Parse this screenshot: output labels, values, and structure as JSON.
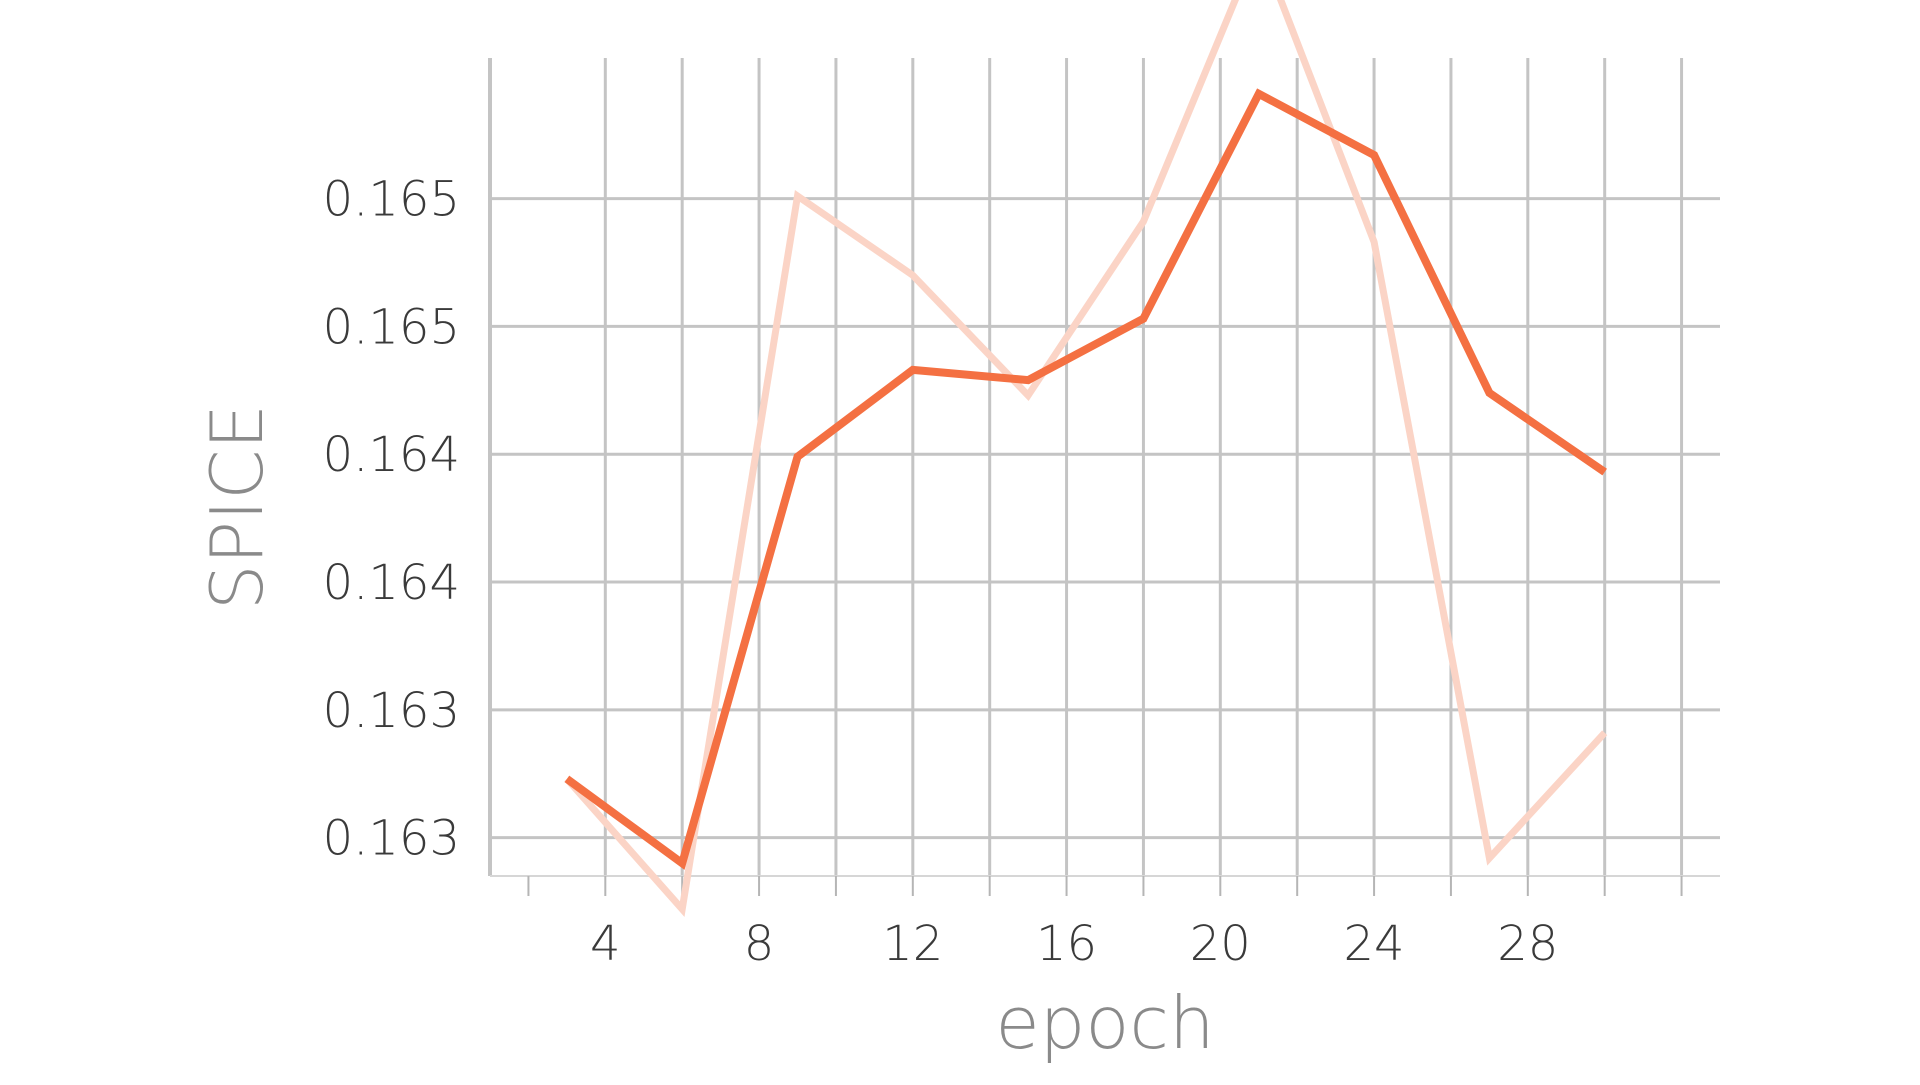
{
  "chart_data": {
    "type": "line",
    "xlabel": "epoch",
    "ylabel": "SPICE",
    "xlim": [
      1,
      33
    ],
    "ylim": [
      0.16255,
      0.16575
    ],
    "grid": true,
    "legend": "none",
    "x_ticks": [
      4,
      8,
      12,
      16,
      20,
      24,
      28
    ],
    "x_minor_ticks": [
      6,
      10,
      14,
      18,
      22,
      26,
      30,
      32
    ],
    "y_ticks": [
      0.1627,
      0.1632,
      0.1637,
      0.1642,
      0.1647,
      0.1652
    ],
    "y_tick_labels": [
      "0.163",
      "0.163",
      "0.164",
      "0.164",
      "0.165",
      "0.165"
    ],
    "series": [
      {
        "role": "smoothed",
        "color": "#f47042",
        "x": [
          3,
          6,
          9,
          12,
          15,
          18,
          21,
          24,
          27,
          30
        ],
        "y": [
          0.16293,
          0.1626,
          0.16419,
          0.16453,
          0.16449,
          0.16473,
          0.16561,
          0.16537,
          0.16444,
          0.16413
        ]
      },
      {
        "role": "raw",
        "color": "#fbd4c6",
        "x": [
          3,
          6,
          9,
          12,
          15,
          18,
          21,
          24,
          27,
          30
        ],
        "y": [
          0.16293,
          0.16242,
          0.16521,
          0.1649,
          0.16443,
          0.16511,
          0.1662,
          0.16503,
          0.16262,
          0.16311
        ]
      }
    ]
  }
}
